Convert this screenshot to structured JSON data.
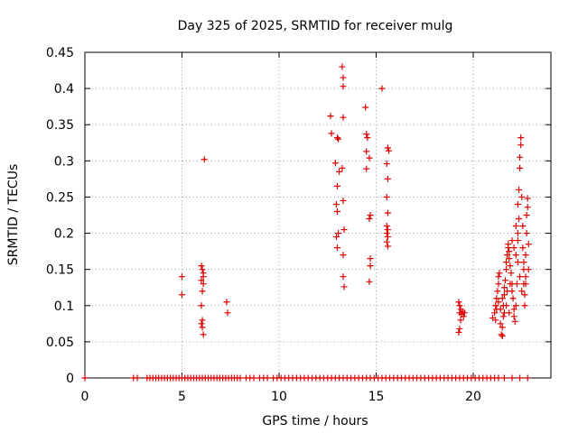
{
  "chart_data": {
    "type": "scatter",
    "title": "Day 325 of 2025, SRMTID for receiver mulg",
    "xlabel": "GPS time / hours",
    "ylabel": "SRMTID / TECUs",
    "xlim": [
      0,
      24
    ],
    "ylim": [
      0,
      0.45
    ],
    "xticks": [
      0,
      5,
      10,
      15,
      20
    ],
    "xtick_labels": [
      "0",
      "5",
      "10",
      "15",
      "20"
    ],
    "yticks": [
      0,
      0.05,
      0.1,
      0.15,
      0.2,
      0.25,
      0.3,
      0.35,
      0.4,
      0.45
    ],
    "ytick_labels": [
      "0",
      "0.05",
      "0.1",
      "0.15",
      "0.2",
      "0.25",
      "0.3",
      "0.35",
      "0.4",
      "0.45"
    ],
    "grid": true,
    "marker": "+",
    "color": "#dd0000",
    "series": [
      {
        "name": "SRMTID",
        "points": [
          [
            5.0,
            0.14
          ],
          [
            5.0,
            0.115
          ],
          [
            6.0,
            0.155
          ],
          [
            6.05,
            0.15
          ],
          [
            6.1,
            0.145
          ],
          [
            6.0,
            0.135
          ],
          [
            6.1,
            0.13
          ],
          [
            6.05,
            0.12
          ],
          [
            6.0,
            0.1
          ],
          [
            6.05,
            0.08
          ],
          [
            6.0,
            0.075
          ],
          [
            6.05,
            0.07
          ],
          [
            6.1,
            0.06
          ],
          [
            6.15,
            0.302
          ],
          [
            6.1,
            0.14
          ],
          [
            7.3,
            0.105
          ],
          [
            7.35,
            0.09
          ],
          [
            12.65,
            0.362
          ],
          [
            12.7,
            0.338
          ],
          [
            13.0,
            0.332
          ],
          [
            13.05,
            0.33
          ],
          [
            12.9,
            0.297
          ],
          [
            13.0,
            0.265
          ],
          [
            12.95,
            0.24
          ],
          [
            13.0,
            0.23
          ],
          [
            13.05,
            0.2
          ],
          [
            12.95,
            0.195
          ],
          [
            13.0,
            0.18
          ],
          [
            13.25,
            0.43
          ],
          [
            13.3,
            0.415
          ],
          [
            13.3,
            0.403
          ],
          [
            13.3,
            0.36
          ],
          [
            13.25,
            0.29
          ],
          [
            13.3,
            0.245
          ],
          [
            13.35,
            0.205
          ],
          [
            13.3,
            0.17
          ],
          [
            13.3,
            0.14
          ],
          [
            13.35,
            0.126
          ],
          [
            13.1,
            0.285
          ],
          [
            14.45,
            0.374
          ],
          [
            14.5,
            0.337
          ],
          [
            14.55,
            0.332
          ],
          [
            14.5,
            0.313
          ],
          [
            14.5,
            0.289
          ],
          [
            14.65,
            0.304
          ],
          [
            14.7,
            0.225
          ],
          [
            14.65,
            0.22
          ],
          [
            14.7,
            0.165
          ],
          [
            14.7,
            0.155
          ],
          [
            14.65,
            0.133
          ],
          [
            15.3,
            0.4
          ],
          [
            15.6,
            0.318
          ],
          [
            15.65,
            0.314
          ],
          [
            15.55,
            0.296
          ],
          [
            15.6,
            0.275
          ],
          [
            15.55,
            0.25
          ],
          [
            15.6,
            0.228
          ],
          [
            15.55,
            0.21
          ],
          [
            15.6,
            0.205
          ],
          [
            15.55,
            0.2
          ],
          [
            15.6,
            0.195
          ],
          [
            15.55,
            0.188
          ],
          [
            15.6,
            0.182
          ],
          [
            19.25,
            0.105
          ],
          [
            19.3,
            0.1
          ],
          [
            19.35,
            0.095
          ],
          [
            19.3,
            0.09
          ],
          [
            19.4,
            0.088
          ],
          [
            19.45,
            0.092
          ],
          [
            19.5,
            0.085
          ],
          [
            19.55,
            0.09
          ],
          [
            19.35,
            0.08
          ],
          [
            19.3,
            0.068
          ],
          [
            19.25,
            0.063
          ],
          [
            21.0,
            0.083
          ],
          [
            21.1,
            0.09
          ],
          [
            21.15,
            0.1
          ],
          [
            21.2,
            0.11
          ],
          [
            21.25,
            0.12
          ],
          [
            21.3,
            0.13
          ],
          [
            21.3,
            0.14
          ],
          [
            21.35,
            0.145
          ],
          [
            21.4,
            0.095
          ],
          [
            21.4,
            0.075
          ],
          [
            21.45,
            0.06
          ],
          [
            21.5,
            0.058
          ],
          [
            21.5,
            0.07
          ],
          [
            21.55,
            0.085
          ],
          [
            21.55,
            0.1
          ],
          [
            21.6,
            0.115
          ],
          [
            21.6,
            0.125
          ],
          [
            21.65,
            0.135
          ],
          [
            21.7,
            0.15
          ],
          [
            21.7,
            0.16
          ],
          [
            21.75,
            0.17
          ],
          [
            21.8,
            0.18
          ],
          [
            21.8,
            0.185
          ],
          [
            21.85,
            0.175
          ],
          [
            21.85,
            0.165
          ],
          [
            21.9,
            0.155
          ],
          [
            21.95,
            0.145
          ],
          [
            22.0,
            0.13
          ],
          [
            22.0,
            0.12
          ],
          [
            22.05,
            0.11
          ],
          [
            22.1,
            0.095
          ],
          [
            22.1,
            0.085
          ],
          [
            22.15,
            0.078
          ],
          [
            22.2,
            0.1
          ],
          [
            22.25,
            0.13
          ],
          [
            22.3,
            0.16
          ],
          [
            22.3,
            0.19
          ],
          [
            22.35,
            0.22
          ],
          [
            22.35,
            0.26
          ],
          [
            22.4,
            0.29
          ],
          [
            22.4,
            0.305
          ],
          [
            22.45,
            0.322
          ],
          [
            22.45,
            0.332
          ],
          [
            22.5,
            0.25
          ],
          [
            22.55,
            0.21
          ],
          [
            22.55,
            0.18
          ],
          [
            22.6,
            0.15
          ],
          [
            22.6,
            0.13
          ],
          [
            22.65,
            0.115
          ],
          [
            22.65,
            0.1
          ],
          [
            22.7,
            0.14
          ],
          [
            22.7,
            0.17
          ],
          [
            22.75,
            0.2
          ],
          [
            22.75,
            0.225
          ],
          [
            22.8,
            0.236
          ],
          [
            22.8,
            0.248
          ],
          [
            22.85,
            0.185
          ],
          [
            22.3,
            0.2
          ],
          [
            22.2,
            0.17
          ],
          [
            22.1,
            0.18
          ],
          [
            21.9,
            0.13
          ],
          [
            21.7,
            0.1
          ],
          [
            21.6,
            0.09
          ],
          [
            21.5,
            0.11
          ],
          [
            21.3,
            0.105
          ],
          [
            21.2,
            0.095
          ],
          [
            21.15,
            0.08
          ],
          [
            22.5,
            0.12
          ],
          [
            22.6,
            0.16
          ],
          [
            22.4,
            0.14
          ],
          [
            22.0,
            0.19
          ],
          [
            22.2,
            0.21
          ],
          [
            22.3,
            0.24
          ],
          [
            22.7,
            0.13
          ],
          [
            22.85,
            0.15
          ],
          [
            21.75,
            0.12
          ],
          [
            21.85,
            0.09
          ]
        ],
        "zero_values": {
          "y": 0,
          "x": [
            0.0,
            2.5,
            2.7,
            3.2,
            3.35,
            3.5,
            3.65,
            3.8,
            3.95,
            4.1,
            4.25,
            4.4,
            4.55,
            4.7,
            4.85,
            5.0,
            5.15,
            5.3,
            5.45,
            5.6,
            5.75,
            5.9,
            6.05,
            6.2,
            6.35,
            6.5,
            6.65,
            6.8,
            6.95,
            7.1,
            7.25,
            7.4,
            7.55,
            7.7,
            7.85,
            8.0,
            8.3,
            8.5,
            8.7,
            9.0,
            9.2,
            9.4,
            9.7,
            9.9,
            10.1,
            10.3,
            10.5,
            10.7,
            10.9,
            11.1,
            11.3,
            11.5,
            11.7,
            11.9,
            12.1,
            12.3,
            12.5,
            12.7,
            12.9,
            13.1,
            13.3,
            13.5,
            13.7,
            13.9,
            14.1,
            14.3,
            14.5,
            14.7,
            14.9,
            15.1,
            15.3,
            15.5,
            15.7,
            15.9,
            16.1,
            16.3,
            16.5,
            16.7,
            16.9,
            17.1,
            17.3,
            17.5,
            17.7,
            17.9,
            18.1,
            18.3,
            18.5,
            18.7,
            18.9,
            19.1,
            19.3,
            19.5,
            19.7,
            19.9,
            20.1,
            20.3,
            20.5,
            20.7,
            20.9,
            21.1,
            21.3,
            21.6,
            22.0,
            22.4,
            22.8
          ]
        }
      }
    ]
  }
}
